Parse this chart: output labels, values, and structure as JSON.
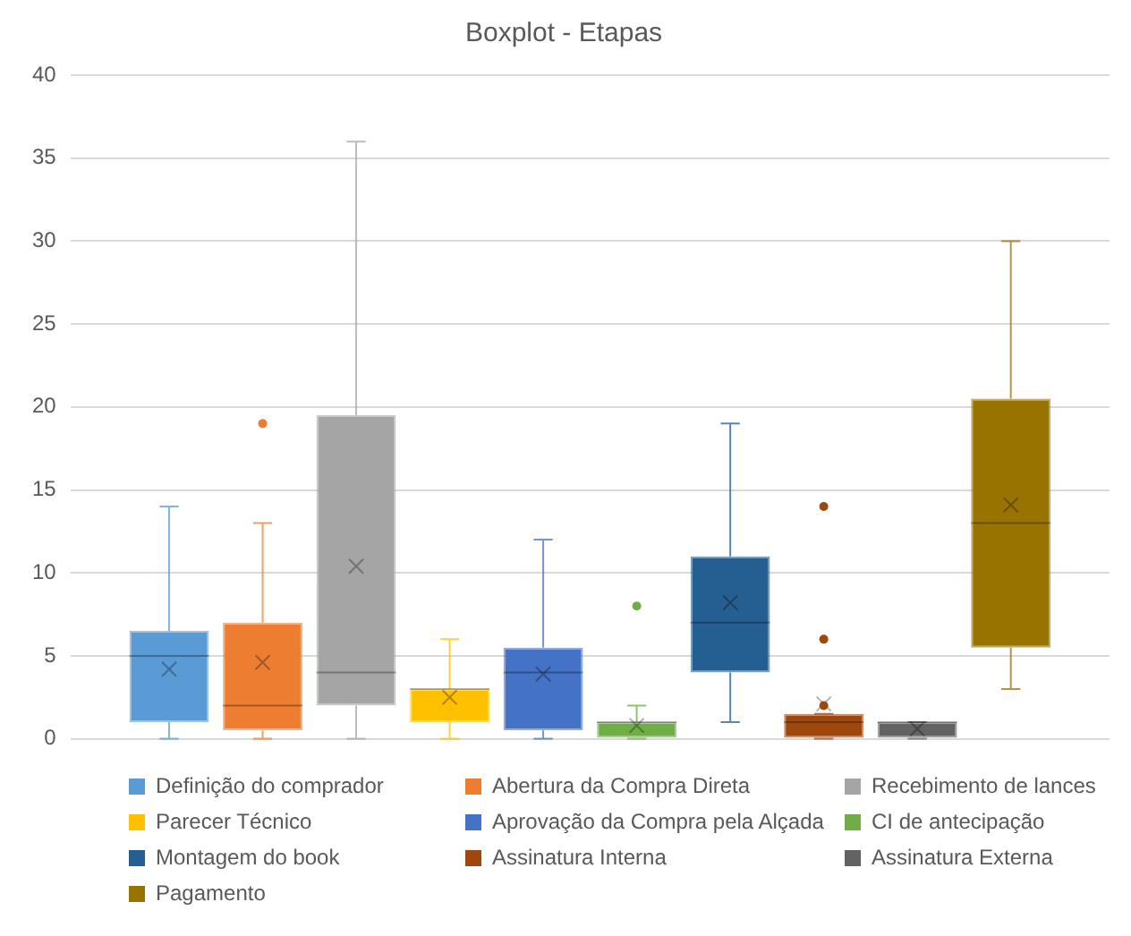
{
  "chart_data": {
    "type": "box",
    "title": "Boxplot - Etapas",
    "categories": [
      null
    ],
    "ylim": [
      0,
      40
    ],
    "yticks": [
      0,
      5,
      10,
      15,
      20,
      25,
      30,
      35,
      40
    ],
    "grid": "y",
    "legend": "bottom",
    "tick_labels": "y",
    "series": [
      {
        "name": "Definição do comprador",
        "color": "#5b9bd5",
        "boxes": [
          {
            "low": 0,
            "q1": 1,
            "median": 5,
            "q3": 6.5,
            "high": 14,
            "mean": 4.2
          }
        ]
      },
      {
        "name": "Abertura da Compra Direta",
        "color": "#ed7d31",
        "boxes": [
          {
            "low": 0,
            "q1": 0.5,
            "median": 2,
            "q3": 7,
            "high": 13,
            "mean": 4.6,
            "outliers": [
              19
            ]
          }
        ]
      },
      {
        "name": "Recebimento de lances",
        "color": "#a5a5a5",
        "boxes": [
          {
            "low": 0,
            "q1": 2,
            "median": 4,
            "q3": 19.5,
            "high": 36,
            "mean": 10.4
          }
        ]
      },
      {
        "name": "Parecer Técnico",
        "color": "#ffc000",
        "boxes": [
          {
            "low": 0,
            "q1": 1,
            "median": 3,
            "q3": 3,
            "high": 6,
            "mean": 2.5
          }
        ]
      },
      {
        "name": "Aprovação da Compra pela Alçada",
        "color": "#4472c4",
        "boxes": [
          {
            "low": 0,
            "q1": 0.5,
            "median": 4,
            "q3": 5.5,
            "high": 12,
            "mean": 3.9
          }
        ]
      },
      {
        "name": "CI de antecipação",
        "color": "#70ad47",
        "boxes": [
          {
            "low": 0,
            "q1": 0,
            "median": 1,
            "q3": 1,
            "high": 2,
            "mean": 0.8,
            "outliers": [
              8
            ]
          }
        ]
      },
      {
        "name": "Montagem do book",
        "color": "#255e91",
        "boxes": [
          {
            "low": 1,
            "q1": 4,
            "median": 7,
            "q3": 11,
            "high": 19,
            "mean": 8.2
          }
        ]
      },
      {
        "name": "Assinatura Interna",
        "color": "#9e480e",
        "boxes": [
          {
            "low": 0,
            "q1": 0,
            "median": 1,
            "q3": 1.5,
            "high": 1.5,
            "mean": 2.1,
            "outliers": [
              14,
              6,
              2
            ]
          }
        ]
      },
      {
        "name": "Assinatura Externa",
        "color": "#636363",
        "boxes": [
          {
            "low": 0,
            "q1": 0,
            "median": 1,
            "q3": 1,
            "high": 1,
            "mean": 0.6
          }
        ]
      },
      {
        "name": "Pagamento",
        "color": "#997300",
        "boxes": [
          {
            "low": 3,
            "q1": 5.5,
            "median": 13,
            "q3": 20.5,
            "high": 30,
            "mean": 14.1
          }
        ]
      }
    ]
  }
}
